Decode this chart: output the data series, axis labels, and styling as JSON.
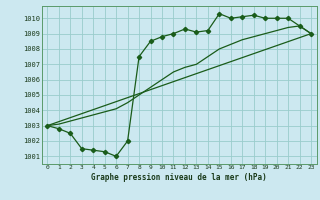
{
  "xlabel": "Graphe pression niveau de la mer (hPa)",
  "bg_color": "#cce8f0",
  "grid_color": "#99cccc",
  "line_color": "#1a5c1a",
  "ylim": [
    1000.5,
    1010.8
  ],
  "xlim": [
    -0.5,
    23.5
  ],
  "yticks": [
    1001,
    1002,
    1003,
    1004,
    1005,
    1006,
    1007,
    1008,
    1009,
    1010
  ],
  "xticks": [
    0,
    1,
    2,
    3,
    4,
    5,
    6,
    7,
    8,
    9,
    10,
    11,
    12,
    13,
    14,
    15,
    16,
    17,
    18,
    19,
    20,
    21,
    22,
    23
  ],
  "series1_x": [
    0,
    1,
    2,
    3,
    4,
    5,
    6,
    7,
    8,
    9,
    10,
    11,
    12,
    13,
    14,
    15,
    16,
    17,
    18,
    19,
    20,
    21,
    22,
    23
  ],
  "series1_y": [
    1003.0,
    1002.8,
    1002.5,
    1001.5,
    1001.4,
    1001.3,
    1001.0,
    1002.0,
    1007.5,
    1008.5,
    1008.8,
    1009.0,
    1009.3,
    1009.1,
    1009.2,
    1010.3,
    1010.0,
    1010.1,
    1010.2,
    1010.0,
    1010.0,
    1010.0,
    1009.5,
    1009.0
  ],
  "series2_x": [
    0,
    1,
    2,
    3,
    4,
    5,
    6,
    7,
    8,
    9,
    10,
    11,
    12,
    13,
    14,
    15,
    16,
    17,
    18,
    19,
    20,
    21,
    22,
    23
  ],
  "series2_y": [
    1003.0,
    1003.1,
    1003.3,
    1003.5,
    1003.7,
    1003.9,
    1004.1,
    1004.5,
    1005.0,
    1005.5,
    1006.0,
    1006.5,
    1006.8,
    1007.0,
    1007.5,
    1008.0,
    1008.3,
    1008.6,
    1008.8,
    1009.0,
    1009.2,
    1009.4,
    1009.5,
    1009.0
  ],
  "trend_x": [
    0,
    23
  ],
  "trend_y": [
    1003.0,
    1009.0
  ]
}
